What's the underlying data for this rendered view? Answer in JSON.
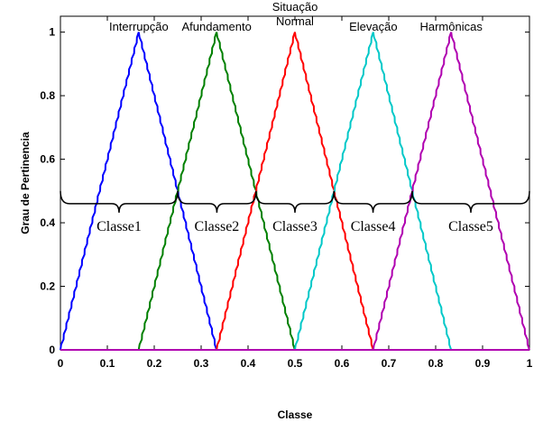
{
  "chart_data": {
    "type": "line",
    "xlabel": "Classe",
    "ylabel": "Grau de Pertinencia",
    "xlim": [
      0,
      1
    ],
    "ylim": [
      0,
      1.05
    ],
    "xticks": [
      "0",
      "0.1",
      "0.2",
      "0.3",
      "0.4",
      "0.5",
      "0.6",
      "0.7",
      "0.8",
      "0.9",
      "1"
    ],
    "yticks": [
      "0",
      "0.2",
      "0.4",
      "0.6",
      "0.8",
      "1"
    ],
    "grid": false,
    "series": [
      {
        "name": "Interrupção",
        "color": "#0000ff",
        "points": [
          [
            0,
            0
          ],
          [
            0.167,
            1
          ],
          [
            0.333,
            0
          ]
        ]
      },
      {
        "name": "Afundamento",
        "color": "#008000",
        "points": [
          [
            0.167,
            0
          ],
          [
            0.333,
            1
          ],
          [
            0.5,
            0
          ]
        ]
      },
      {
        "name": "Situação Normal",
        "color": "#ff0000",
        "points": [
          [
            0.333,
            0
          ],
          [
            0.5,
            1
          ],
          [
            0.667,
            0
          ]
        ]
      },
      {
        "name": "Elevação",
        "color": "#00c8c8",
        "points": [
          [
            0.5,
            0
          ],
          [
            0.667,
            1
          ],
          [
            0.833,
            0
          ]
        ]
      },
      {
        "name": "Harmônicas",
        "color": "#b000b0",
        "points": [
          [
            0.667,
            0
          ],
          [
            0.833,
            1
          ],
          [
            1.0,
            0
          ]
        ]
      }
    ],
    "series_labels": [
      {
        "text": "Interrupção",
        "x": 0.167
      },
      {
        "text": "Afundamento",
        "x": 0.333
      },
      {
        "text_lines": [
          "Situação",
          "Normal"
        ],
        "x": 0.5
      },
      {
        "text": "Elevação",
        "x": 0.667
      },
      {
        "text": "Harmônicas",
        "x": 0.833
      }
    ],
    "classes": [
      {
        "label": "Classe1",
        "from": 0.0,
        "to": 0.25
      },
      {
        "label": "Classe2",
        "from": 0.25,
        "to": 0.417
      },
      {
        "label": "Classe3",
        "from": 0.417,
        "to": 0.583
      },
      {
        "label": "Classe4",
        "from": 0.583,
        "to": 0.75
      },
      {
        "label": "Classe5",
        "from": 0.75,
        "to": 1.0
      }
    ],
    "brace_level": 0.46
  }
}
